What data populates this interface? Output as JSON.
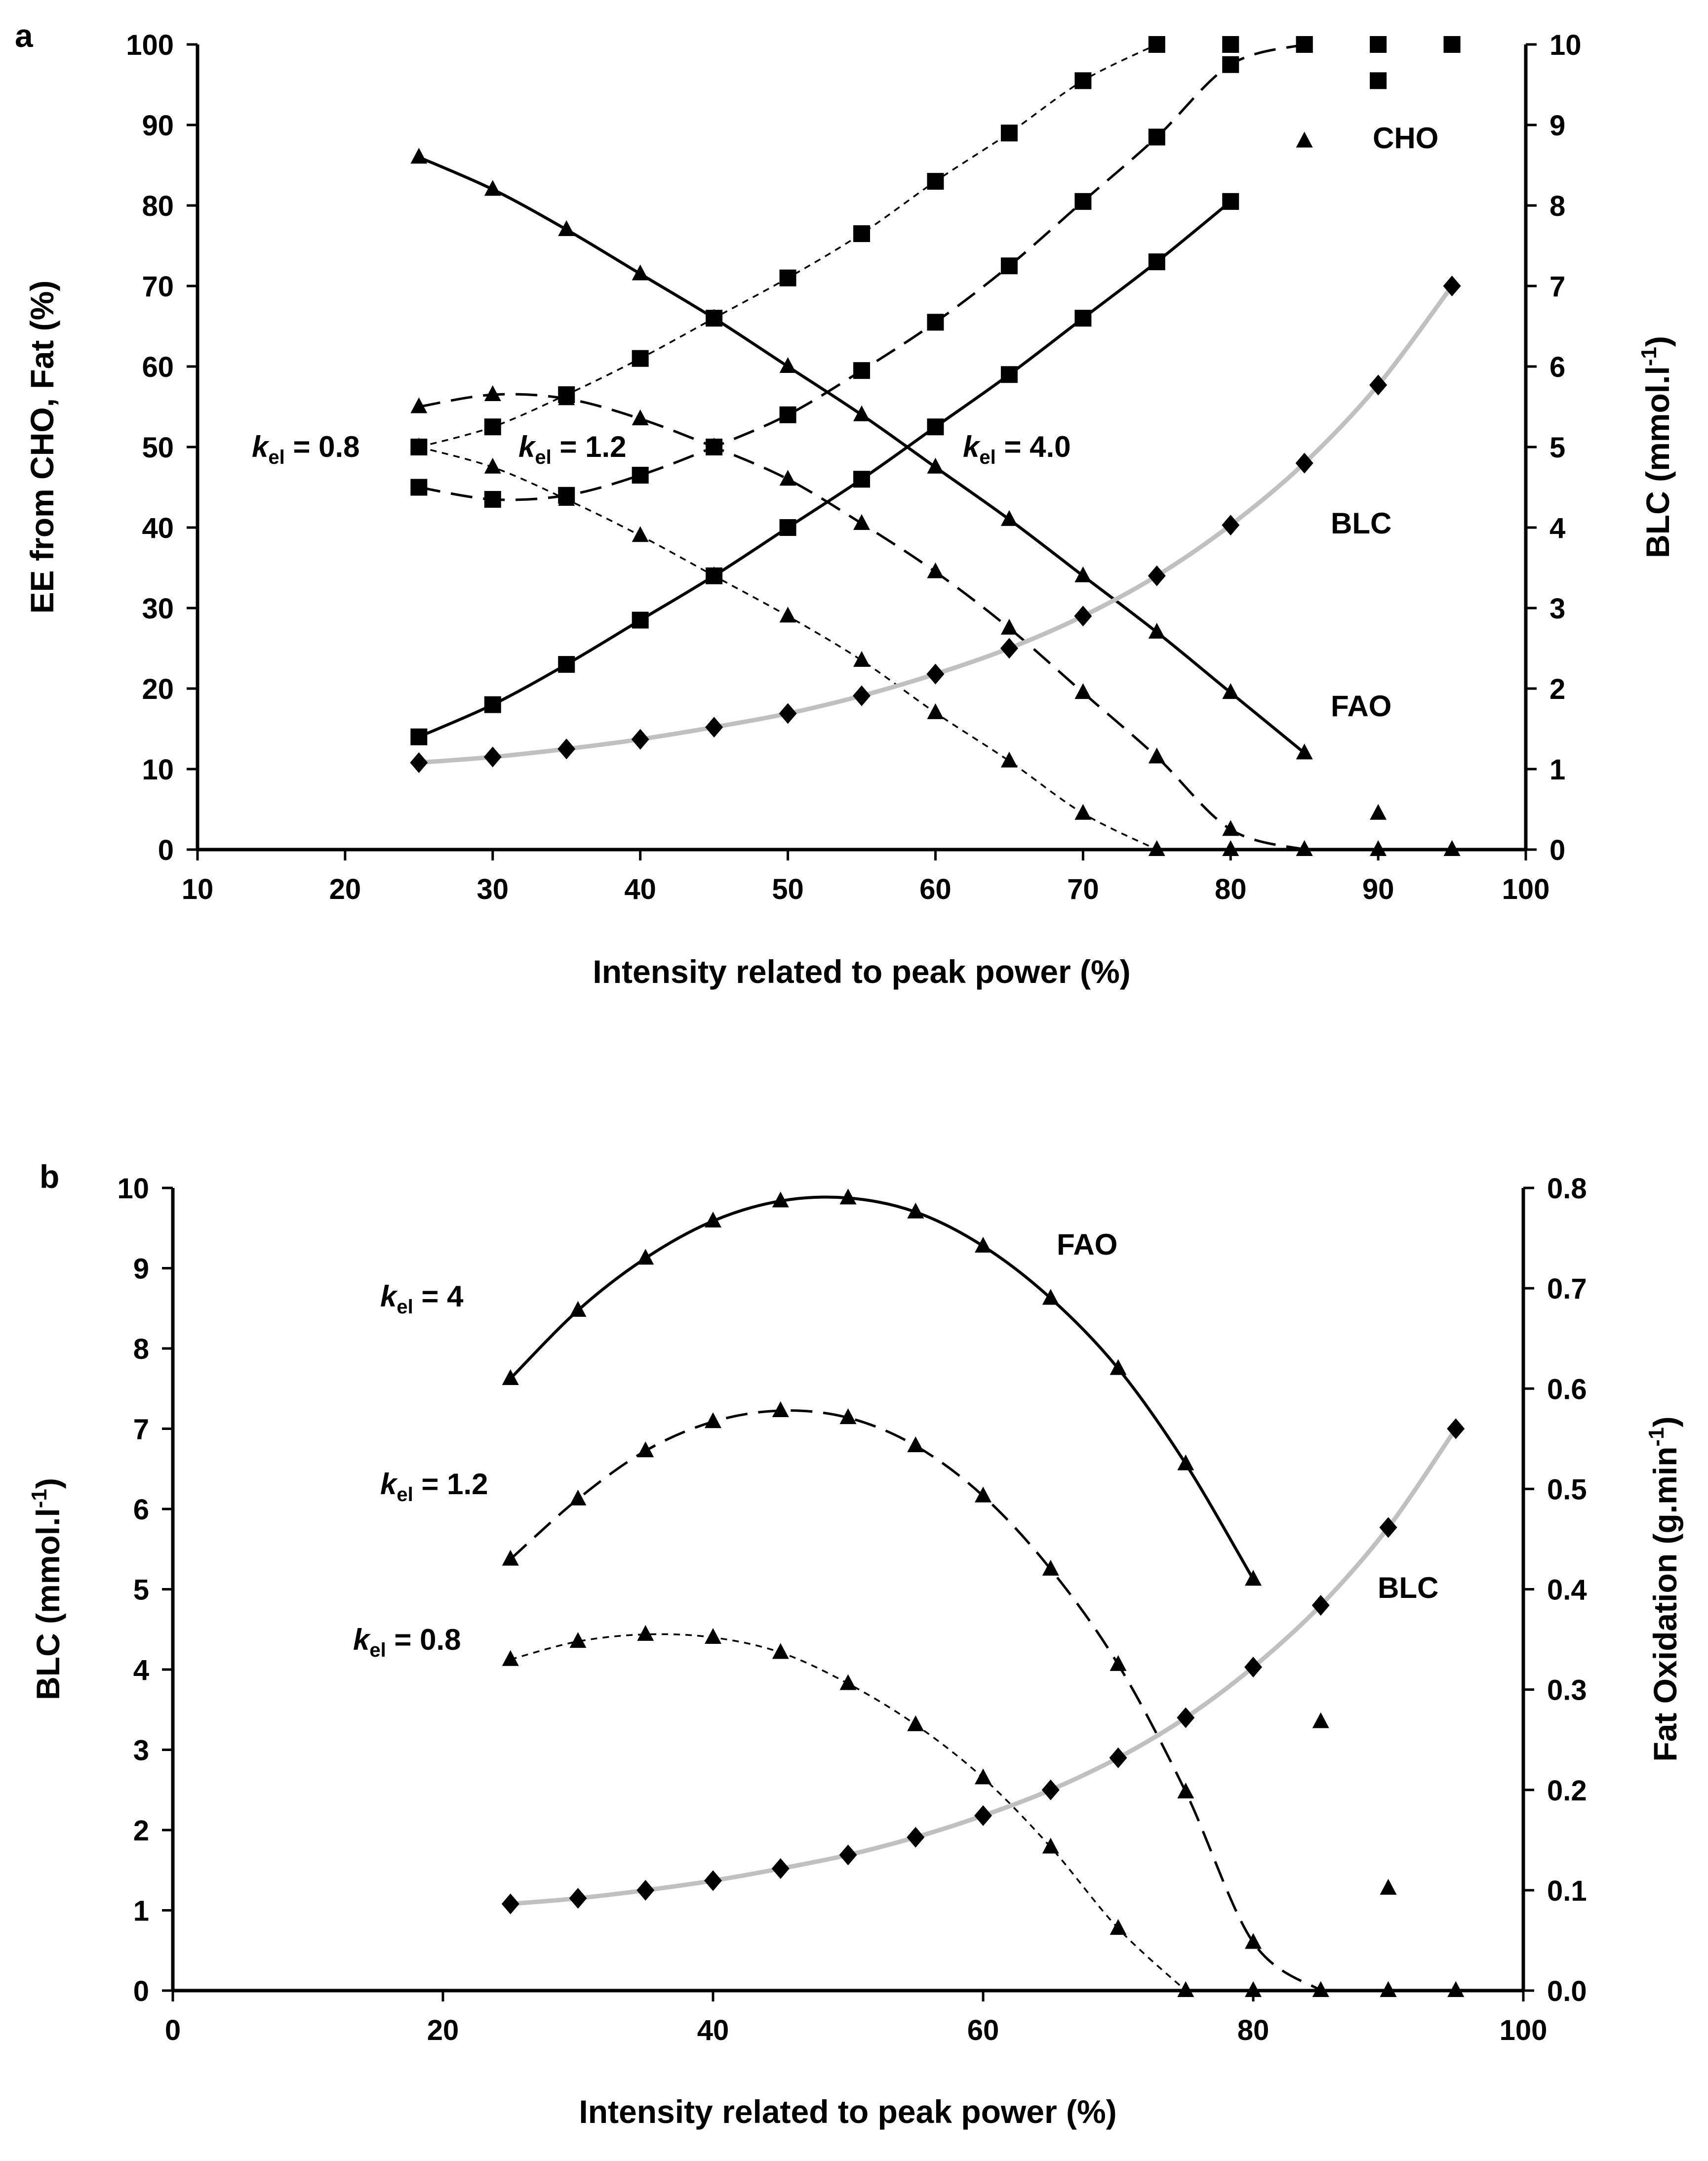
{
  "chart_data": [
    {
      "panel": "a",
      "type": "line",
      "xlabel": "Intensity related to peak power (%)",
      "ylabel": "EE from CHO, Fat (%)",
      "y2label": "BLC (mmol.l-1)",
      "xlim": [
        10,
        100
      ],
      "ylim": [
        0,
        100
      ],
      "y2lim": [
        0,
        10
      ],
      "xticks": [
        10,
        20,
        30,
        40,
        50,
        60,
        70,
        80,
        90,
        100
      ],
      "yticks": [
        0,
        10,
        20,
        30,
        40,
        50,
        60,
        70,
        80,
        90,
        100
      ],
      "y2ticks": [
        0,
        1,
        2,
        3,
        4,
        5,
        6,
        7,
        8,
        9,
        10
      ],
      "x": [
        25,
        30,
        35,
        40,
        45,
        50,
        55,
        60,
        65,
        70,
        75,
        80,
        85,
        90,
        95
      ],
      "series": [
        {
          "name": "CHO kel=0.8",
          "axis": "left",
          "marker": "square",
          "style": "dotted",
          "values": [
            50,
            52.5,
            56.5,
            61,
            66,
            71,
            76.5,
            83,
            89,
            95.5,
            100,
            100,
            100,
            100,
            100
          ]
        },
        {
          "name": "CHO kel=1.2",
          "axis": "left",
          "marker": "square",
          "style": "dashed",
          "values": [
            45,
            43.5,
            44,
            46.5,
            50,
            54,
            59.5,
            65.5,
            72.5,
            80.5,
            88.5,
            97.5,
            100,
            95.5,
            100
          ]
        },
        {
          "name": "CHO kel=4.0",
          "axis": "left",
          "marker": "square",
          "style": "solid",
          "values": [
            14,
            18,
            23,
            28.5,
            34,
            40,
            46,
            52.5,
            59,
            66,
            73,
            80.5,
            null,
            null,
            null
          ]
        },
        {
          "name": "FAO kel=0.8",
          "axis": "left",
          "marker": "triangle",
          "style": "dotted",
          "values": [
            50,
            47.5,
            43.5,
            39,
            34,
            29,
            23.5,
            17,
            11,
            4.5,
            0,
            0,
            0,
            0,
            0
          ]
        },
        {
          "name": "FAO kel=1.2",
          "axis": "left",
          "marker": "triangle",
          "style": "dashed",
          "values": [
            55,
            56.5,
            56,
            53.5,
            50,
            46,
            40.5,
            34.5,
            27.5,
            19.5,
            11.5,
            2.5,
            0,
            4.5,
            0
          ]
        },
        {
          "name": "FAO kel=4.0",
          "axis": "left",
          "marker": "triangle",
          "style": "solid",
          "values": [
            86,
            82,
            77,
            71.5,
            66,
            60,
            54,
            47.5,
            41,
            34,
            27,
            19.5,
            12,
            null,
            null
          ]
        },
        {
          "name": "BLC",
          "axis": "right",
          "marker": "diamond",
          "style": "gray",
          "values": [
            1.08,
            1.15,
            1.25,
            1.37,
            1.52,
            1.69,
            1.91,
            2.18,
            2.5,
            2.9,
            3.4,
            4.03,
            4.8,
            5.77,
            7.0
          ]
        }
      ],
      "extra_markers": [
        {
          "x": 85,
          "axis": "left",
          "marker": "triangle",
          "value": 88
        }
      ],
      "annotations": [
        {
          "text": "CHO",
          "near": "upper-right"
        },
        {
          "text": "BLC",
          "near": "right"
        },
        {
          "text": "FAO",
          "near": "lower-right"
        },
        {
          "text": "0.8",
          "near": "kel label"
        },
        {
          "text": "1.2",
          "near": "kel label"
        },
        {
          "text": "4.0",
          "near": "kel label"
        }
      ]
    },
    {
      "panel": "b",
      "type": "line",
      "xlabel": "Intensity related to peak power (%)",
      "ylabel": "BLC (mmol.l-1)",
      "y2label": "Fat Oxidation (g.min-1)",
      "xlim": [
        0,
        100
      ],
      "ylim": [
        0,
        10
      ],
      "y2lim": [
        0,
        0.8
      ],
      "xticks": [
        0,
        20,
        40,
        60,
        80,
        100
      ],
      "yticks": [
        0,
        1,
        2,
        3,
        4,
        5,
        6,
        7,
        8,
        9,
        10
      ],
      "y2ticks": [
        "0.0",
        "0.1",
        "0.2",
        "0.3",
        "0.4",
        "0.5",
        "0.6",
        "0.7",
        "0.8"
      ],
      "x": [
        25,
        30,
        35,
        40,
        45,
        50,
        55,
        60,
        65,
        70,
        75,
        80,
        85,
        90,
        95
      ],
      "series": [
        {
          "name": "FAO kel=4",
          "axis": "right",
          "marker": "triangle",
          "style": "solid",
          "values": [
            0.61,
            0.678,
            0.73,
            0.767,
            0.787,
            0.79,
            0.776,
            0.742,
            0.69,
            0.62,
            0.525,
            0.41,
            null,
            null,
            null
          ]
        },
        {
          "name": "FAO kel=1.2",
          "axis": "right",
          "marker": "triangle",
          "style": "dashed",
          "values": [
            0.43,
            0.49,
            0.538,
            0.567,
            0.578,
            0.571,
            0.543,
            0.493,
            0.42,
            0.325,
            0.198,
            0.048,
            0,
            0,
            0
          ]
        },
        {
          "name": "FAO kel=0.8",
          "axis": "right",
          "marker": "triangle",
          "style": "dotted",
          "values": [
            0.33,
            0.348,
            0.355,
            0.352,
            0.337,
            0.306,
            0.265,
            0.212,
            0.143,
            0.062,
            0,
            0,
            0,
            0,
            0
          ]
        },
        {
          "name": "BLC",
          "axis": "left",
          "marker": "diamond",
          "style": "gray",
          "values": [
            1.08,
            1.15,
            1.25,
            1.37,
            1.52,
            1.69,
            1.91,
            2.18,
            2.5,
            2.9,
            3.4,
            4.03,
            4.8,
            5.77,
            7.0
          ]
        }
      ],
      "extra_markers": [
        {
          "x": 85,
          "axis": "right",
          "marker": "triangle",
          "value": 0.268
        },
        {
          "x": 90,
          "axis": "right",
          "marker": "triangle",
          "value": 0.102
        }
      ],
      "annotations": [
        {
          "text": "FAO",
          "near": "upper-right"
        },
        {
          "text": "BLC",
          "near": "right"
        },
        {
          "text": "4",
          "near": "kel label"
        },
        {
          "text": "1.2",
          "near": "kel label"
        },
        {
          "text": "0.8",
          "near": "kel label"
        }
      ]
    }
  ],
  "labels": {
    "panel_a": "a",
    "panel_b": "b",
    "kel_k": "k",
    "kel_sub": "el",
    "kel_eq": " = ",
    "a_ylabel_main": "EE from CHO, Fat (%)",
    "a_y2label_main": "BLC (mmol.l",
    "b_ylabel_main": "BLC (mmol.l",
    "b_y2label_main": "Fat Oxidation (g.min",
    "sup_neg1": "-1",
    "close_paren": ")"
  }
}
